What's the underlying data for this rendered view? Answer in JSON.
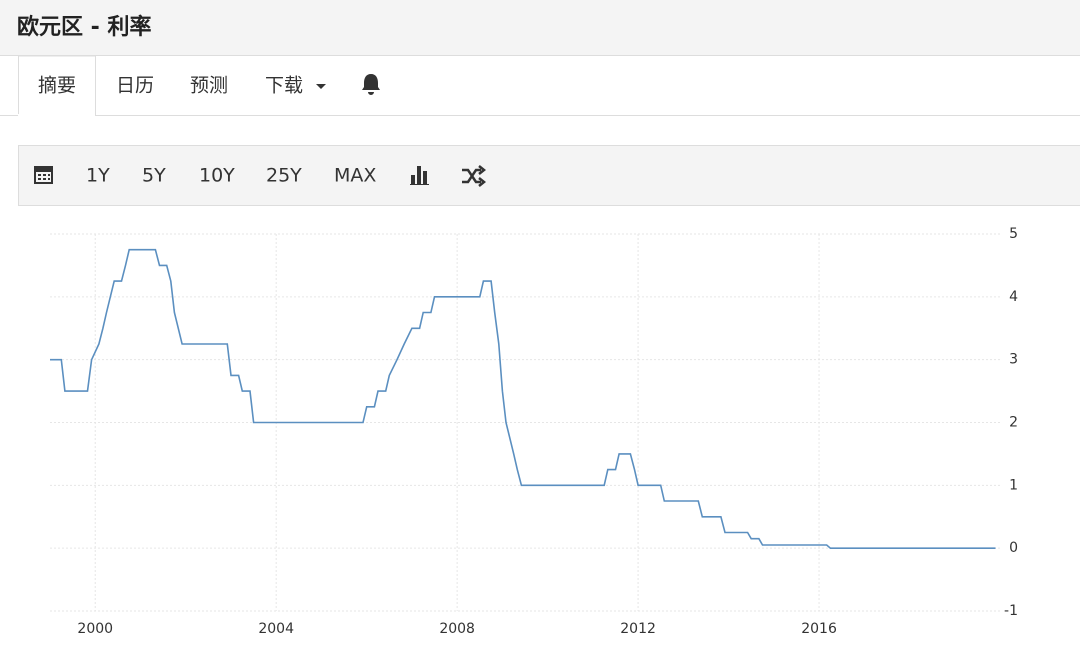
{
  "header": {
    "title": "欧元区 - 利率"
  },
  "tabs": [
    "摘要",
    "日历",
    "预测",
    "下载"
  ],
  "toolbar": [
    "1Y",
    "5Y",
    "10Y",
    "25Y",
    "MAX"
  ],
  "chart_data": {
    "type": "line",
    "x": [
      1999.0,
      1999.25,
      1999.33,
      1999.83,
      1999.92,
      2000.08,
      2000.17,
      2000.25,
      2000.42,
      2000.58,
      2000.67,
      2000.75,
      2001.33,
      2001.42,
      2001.58,
      2001.67,
      2001.75,
      2001.92,
      2002.92,
      2003.0,
      2003.17,
      2003.25,
      2003.42,
      2003.5,
      2005.92,
      2006.0,
      2006.17,
      2006.25,
      2006.42,
      2006.5,
      2006.67,
      2006.83,
      2007.0,
      2007.17,
      2007.25,
      2007.42,
      2007.5,
      2008.5,
      2008.58,
      2008.75,
      2008.83,
      2008.92,
      2009.0,
      2009.08,
      2009.25,
      2009.33,
      2009.42,
      2011.25,
      2011.33,
      2011.5,
      2011.58,
      2011.83,
      2011.92,
      2012.0,
      2012.5,
      2012.58,
      2013.33,
      2013.42,
      2013.83,
      2013.92,
      2014.42,
      2014.5,
      2014.67,
      2014.75,
      2016.17,
      2016.25,
      2019.9
    ],
    "values": [
      3,
      3,
      2.5,
      2.5,
      3,
      3.25,
      3.5,
      3.75,
      4.25,
      4.25,
      4.5,
      4.75,
      4.75,
      4.5,
      4.5,
      4.25,
      3.75,
      3.25,
      3.25,
      2.75,
      2.75,
      2.5,
      2.5,
      2,
      2,
      2.25,
      2.25,
      2.5,
      2.5,
      2.75,
      3,
      3.25,
      3.5,
      3.5,
      3.75,
      3.75,
      4,
      4,
      4.25,
      4.25,
      3.75,
      3.25,
      2.5,
      2,
      1.5,
      1.25,
      1,
      1,
      1.25,
      1.25,
      1.5,
      1.5,
      1.25,
      1,
      1,
      0.75,
      0.75,
      0.5,
      0.5,
      0.25,
      0.25,
      0.15,
      0.15,
      0.05,
      0.05,
      0,
      0
    ],
    "color": "#5b8fc0",
    "xlim": [
      1999,
      2020
    ],
    "xticks": [
      2000,
      2004,
      2008,
      2012,
      2016
    ],
    "ylim": [
      -1,
      5
    ],
    "yticks": [
      -1,
      0,
      1,
      2,
      3,
      4,
      5
    ],
    "grid": true
  }
}
